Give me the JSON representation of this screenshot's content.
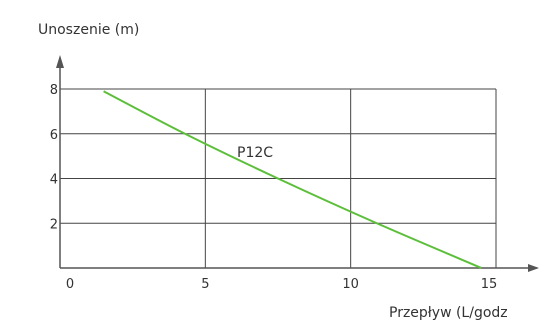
{
  "chart_data": {
    "type": "line",
    "title": "",
    "ylabel": "Unoszenie (m)",
    "xlabel": "Przepływ (L/godz",
    "xlim": [
      0,
      15
    ],
    "ylim": [
      0,
      8
    ],
    "x_ticks": [
      0,
      5,
      10,
      15
    ],
    "y_ticks": [
      2,
      4,
      6,
      8
    ],
    "grid": true,
    "series": [
      {
        "name": "P12C",
        "color": "#5cbf3a",
        "x": [
          1.5,
          4.3,
          7.5,
          10.9,
          14.5
        ],
        "y": [
          7.9,
          6.0,
          4.0,
          2.0,
          0.0
        ]
      }
    ]
  }
}
